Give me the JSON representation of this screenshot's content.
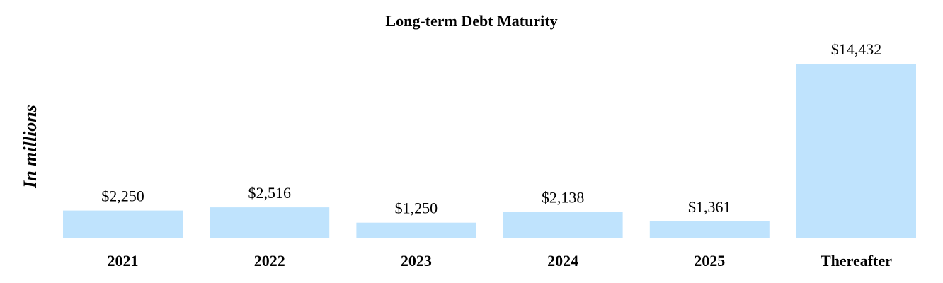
{
  "chart_data": {
    "type": "bar",
    "title": "Long-term Debt Maturity",
    "ylabel": "In millions",
    "xlabel": "",
    "categories": [
      "2021",
      "2022",
      "2023",
      "2024",
      "2025",
      "Thereafter"
    ],
    "values": [
      2250,
      2516,
      1250,
      2138,
      1361,
      14432
    ],
    "value_labels": [
      "$2,250",
      "$2,516",
      "$1,250",
      "$2,138",
      "$1,361",
      "$14,432"
    ],
    "ylim": [
      0,
      14432
    ],
    "grid": false,
    "legend": "none",
    "bar_color": "#bfe3fd"
  }
}
